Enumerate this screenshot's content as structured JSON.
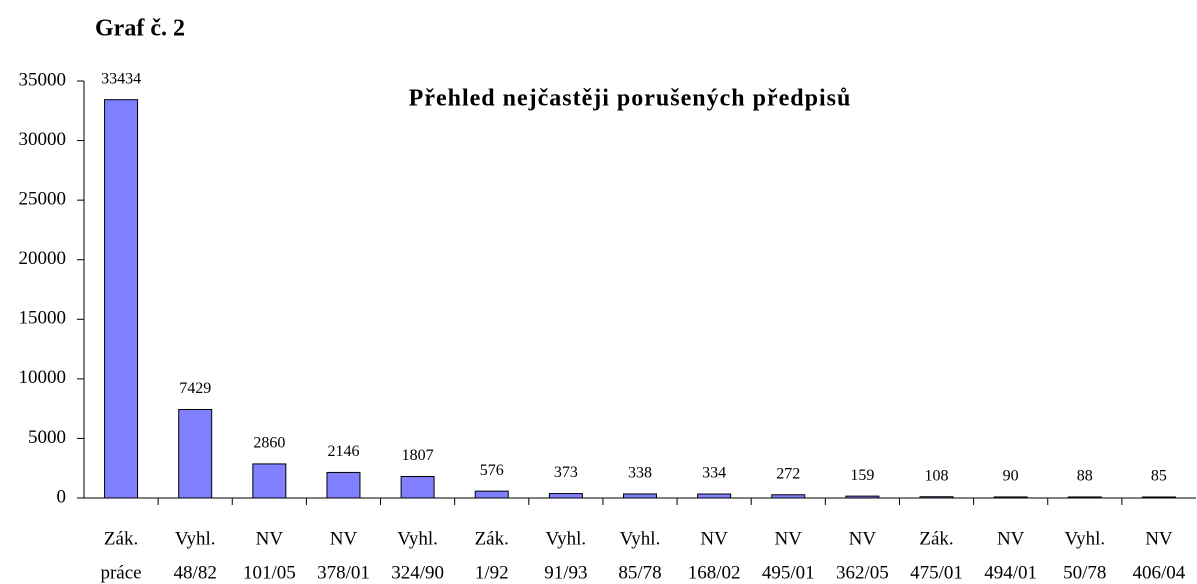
{
  "chart_data": {
    "type": "bar",
    "heading": "Graf č. 2",
    "title": "Přehled nejčastěji porušených předpisů",
    "categories": [
      [
        "Zák.",
        "práce"
      ],
      [
        "Vyhl.",
        "48/82"
      ],
      [
        "NV",
        "101/05"
      ],
      [
        "NV",
        "378/01"
      ],
      [
        "Vyhl.",
        "324/90"
      ],
      [
        "Zák.",
        "1/92"
      ],
      [
        "Vyhl.",
        "91/93"
      ],
      [
        "Vyhl.",
        "85/78"
      ],
      [
        "NV",
        "168/02"
      ],
      [
        "NV",
        "495/01"
      ],
      [
        "NV",
        "362/05"
      ],
      [
        "Zák.",
        "475/01"
      ],
      [
        "NV",
        "494/01"
      ],
      [
        "Vyhl.",
        "50/78"
      ],
      [
        "NV",
        "406/04"
      ]
    ],
    "values": [
      33434,
      7429,
      2860,
      2146,
      1807,
      576,
      373,
      338,
      334,
      272,
      159,
      108,
      90,
      88,
      85
    ],
    "color": "#8080ff",
    "ylim": [
      0,
      35000
    ],
    "yticks": [
      0,
      5000,
      10000,
      15000,
      20000,
      25000,
      30000,
      35000
    ],
    "grid": false
  }
}
